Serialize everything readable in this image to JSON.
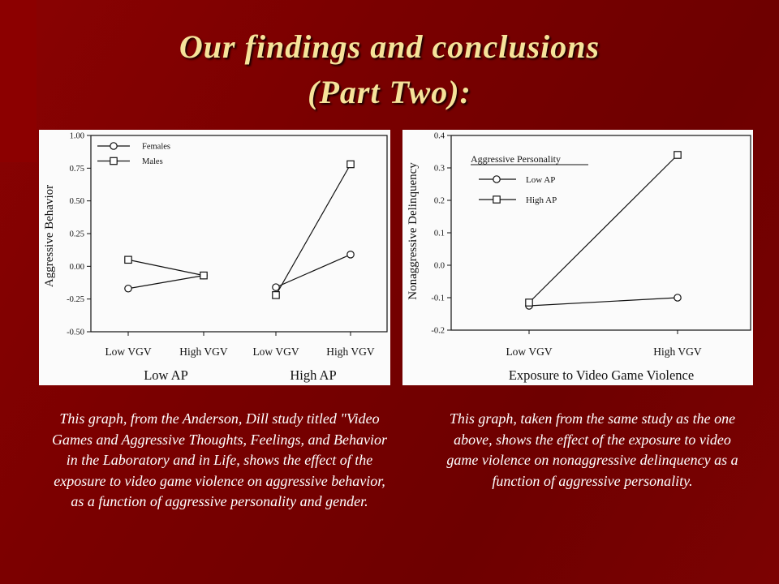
{
  "slide": {
    "title_line1": "Our findings and conclusions",
    "title_line2": "(Part Two):",
    "caption_left": "This graph, from the Anderson, Dill study titled \"Video Games and Aggressive Thoughts, Feelings, and Behavior in the Laboratory and in Life, shows the effect of the exposure to video game violence on aggressive behavior, as a function of aggressive personality and gender.",
    "caption_right": "This graph, taken from the same study as the one above, shows the effect of the exposure to video game violence on nonaggressive delinquency as a function of aggressive personality.",
    "colors": {
      "background": "#760000",
      "title": "#f6e39a",
      "caption": "#ffffff",
      "panel": "#fbfbfb"
    }
  },
  "chart_data": [
    {
      "type": "line",
      "ylabel": "Aggressive Behavior",
      "ylim": [
        -0.5,
        1.0
      ],
      "yticks": [
        "1.00",
        "0.75",
        "0.50",
        "0.25",
        "0.00",
        "-0.25",
        "-0.50"
      ],
      "ytick_values": [
        1.0,
        0.75,
        0.5,
        0.25,
        0.0,
        -0.25,
        -0.5
      ],
      "categories": [
        "Low VGV",
        "High VGV",
        "Low VGV",
        "High VGV"
      ],
      "groups": [
        "Low AP",
        "High AP"
      ],
      "legend_position": "top-left",
      "grid": false,
      "series": [
        {
          "name": "Females",
          "marker": "circle",
          "values": [
            -0.17,
            -0.07,
            -0.16,
            0.09
          ]
        },
        {
          "name": "Males",
          "marker": "square",
          "values": [
            0.05,
            -0.07,
            -0.22,
            0.78
          ]
        }
      ]
    },
    {
      "type": "line",
      "ylabel": "Nonaggressive Delinquency",
      "xlabel": "Exposure to Video Game Violence",
      "ylim": [
        -0.2,
        0.4
      ],
      "yticks": [
        "0.4",
        "0.3",
        "0.2",
        "0.1",
        "0.0",
        "-0.1",
        "-0.2"
      ],
      "ytick_values": [
        0.4,
        0.3,
        0.2,
        0.1,
        0.0,
        -0.1,
        -0.2
      ],
      "categories": [
        "Low VGV",
        "High VGV"
      ],
      "legend_title": "Aggressive Personality",
      "legend_position": "top-left",
      "grid": false,
      "series": [
        {
          "name": "Low AP",
          "marker": "circle",
          "values": [
            -0.125,
            -0.1
          ]
        },
        {
          "name": "High AP",
          "marker": "square",
          "values": [
            -0.115,
            0.34
          ]
        }
      ]
    }
  ]
}
